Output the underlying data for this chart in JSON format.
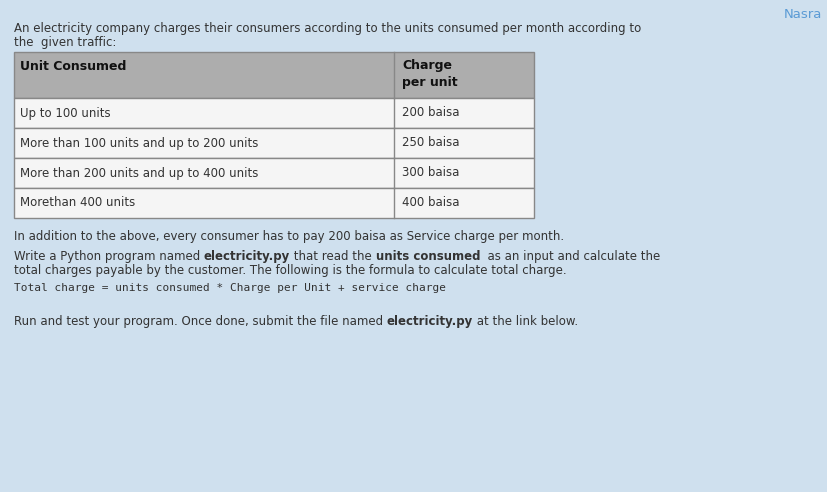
{
  "background_color": "#cfe0ee",
  "title_text": "Nasra",
  "title_color": "#5b9bd5",
  "intro_text_line1": "An electricity company charges their consumers according to the units consumed per month according to",
  "intro_text_line2": "the  given traffic:",
  "table_header_col1": "Unit Consumed",
  "table_header_col2": "Charge\nper unit",
  "table_rows": [
    [
      "Up to 100 units",
      "200 baisa"
    ],
    [
      "More than 100 units and up to 200 units",
      "250 baisa"
    ],
    [
      "More than 200 units and up to 400 units",
      "300 baisa"
    ],
    [
      "Morethan 400 units",
      "400 baisa"
    ]
  ],
  "table_header_bg": "#adadad",
  "table_row_bg": "#f5f5f5",
  "table_border_color": "#888888",
  "body_text1": "In addition to the above, every consumer has to pay 200 baisa as Service charge per month.",
  "body_text2_p1": "Write a Python program named ",
  "body_text2_b1": "electricity.py",
  "body_text2_p2": " that read the ",
  "body_text2_b2": "units consumed",
  "body_text2_p3": "  as an input and calculate the",
  "body_text2_line2": "total charges payable by the customer. The following is the formula to calculate total charge.",
  "formula_text": "Total charge = units consumed * Charge per Unit + service charge",
  "body_text3_p1": "Run and test your program. Once done, submit the file named ",
  "body_text3_b1": "electricity.py",
  "body_text3_p2": " at the link below.",
  "text_color": "#333333",
  "font_size": 8.5,
  "font_size_formula": 8.0,
  "font_size_title": 9.5
}
